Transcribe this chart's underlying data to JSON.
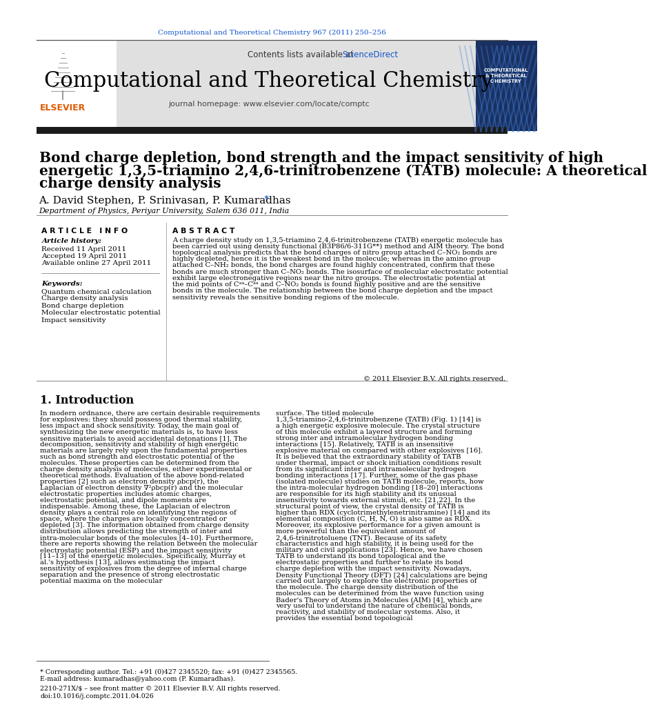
{
  "journal_ref": "Computational and Theoretical Chemistry 967 (2011) 250–256",
  "journal_name": "Computational and Theoretical Chemistry",
  "journal_homepage": "journal homepage: www.elsevier.com/locate/comptc",
  "contents_text": "Contents lists available at ",
  "sciencedirect": "ScienceDirect",
  "title_line1": "Bond charge depletion, bond strength and the impact sensitivity of high",
  "title_line2": "energetic 1,3,5-triamino 2,4,6-trinitrobenzene (TATB) molecule: A theoretical",
  "title_line3": "charge density analysis",
  "authors_main": "A. David Stephen, P. Srinivasan, P. Kumaradhas",
  "authors_star": " *",
  "affiliation": "Department of Physics, Periyar University, Salem 636 011, India",
  "article_info_header": "A R T I C L E   I N F O",
  "abstract_header": "A B S T R A C T",
  "article_history_label": "Article history:",
  "received": "Received 11 April 2011",
  "accepted": "Accepted 19 April 2011",
  "available": "Available online 27 April 2011",
  "keywords_label": "Keywords:",
  "keywords": [
    "Quantum chemical calculation",
    "Charge density analysis",
    "Bond charge depletion",
    "Molecular electrostatic potential",
    "Impact sensitivity"
  ],
  "abstract_text": "A charge density study on 1,3,5-triamino 2,4,6-trinitrobenzene (TATB) energetic molecule has been carried out using density functional (B3P86/6-311G**) method and AIM theory. The bond topological analysis predicts that the bond charges of nitro group attached C–NO₂ bonds are highly depleted, hence it is the weakest bond in the molecule; whereas in the amino group attached C–NH₂ bonds, the bond charges are found highly concentrated, confirm that these bonds are much stronger than C–NO₂ bonds. The isosurface of molecular electrostatic potential exhibit large electronegative regions near the nitro groups. The electrostatic potential at the mid points of Cᵃᵃ–Cᵃᵃ and C–NO₂ bonds is found highly positive and are the sensitive bonds in the molecule. The relationship between the bond charge depletion and the impact sensitivity reveals the sensitive bonding regions of the molecule.",
  "copyright": "© 2011 Elsevier B.V. All rights reserved.",
  "section1_title": "1. Introduction",
  "intro_left": "In modern ordnance, there are certain desirable requirements for explosives: they should possess good thermal stability, less impact and shock sensitivity. Today, the main goal of synthesizing the new energetic materials is, to have less sensitive materials to avoid accidental detonations [1]. The decomposition, sensitivity and stability of high energetic materials are largely rely upon the fundamental properties such as bond strength and electrostatic potential of the molecules. These properties can be determined from the charge density analysis of molecules, either experimental or theoretical methods. Evaluation of the above bond-related properties [2] such as electron density ρbcp(r), the Laplacian of electron density ∇²ρbcp(r) and the molecular electrostatic properties includes atomic charges, electrostatic potential, and dipole moments are indispensable. Among these, the Laplacian of electron density plays a central role on identifying the regions of space, where the charges are locally concentrated or depleted [3]. The information obtained from charge density distribution allows predicting the strength of inter and intra-molecular bonds of the molecules [4–10]. Furthermore, there are reports showing the relation between the molecular electrostatic potential (ESP) and the impact sensitivity [11–13] of the energetic molecules. Specifically, Murray et al.'s hypothesis [13], allows estimating the impact sensitivity of explosives from the degree of internal charge separation and the presence of strong electrostatic potential maxima on the molecular",
  "intro_right": "surface. The titled molecule 1,3,5-triamino-2,4,6-trinitrobenzene (TATB) (Fig. 1) [14] is a high energetic explosive molecule. The crystal structure of this molecule exhibit a layered structure and forming strong inter and intramolecular hydrogen bonding interactions [15]. Relatively, TATB is an insensitive explosive material on compared with other explosives [16]. It is believed that the extraordinary stability of TATB under thermal, impact or shock initiation conditions result from its significant inter and intramolecular hydrogen bonding interactions [17]. Further, some of the gas phase (isolated molecule) studies on TATB molecule, reports, how the intra-molecular hydrogen bonding [18–20] interactions are responsible for its high stability and its unusual insensitivity towards external stimuli, etc. [21,22]. In the structural point of view, the crystal density of TATB is higher than RDX (cyclotrimethylenetrinitramine) [14] and its elemental composition (C, H, N, O) is also same as RDX. Moreover, its explosive performance for a given amount is more powerful than the equivalent amount of 2,4,6-trinitrotoluene (TNT). Because of its safety characteristics and high stability, it is being used for the military and civil applications [23]. Hence, we have chosen TATB to understand its bond topological and the electrostatic properties and further to relate its bond charge depletion with the impact sensitivity. Nowadays, Density Functional Theory (DFT) [24] calculations are being carried out largely to explore the electronic properties of the molecule. The charge density distribution of the molecules can be determined from the wave function using Bader's Theory of Atoms in Molecules (AIM) [4], which are very useful to understand the nature of chemical bonds, reactivity, and stability of molecular systems. Also, it provides the essential bond topological",
  "footnote_star": "* Corresponding author. Tel.: +91 (0)427 2345520; fax: +91 (0)427 2345565.",
  "footnote_email": "E-mail address: kumaradhas@yahoo.com (P. Kumaradhas).",
  "issn_line": "2210-271X/$ – see front matter © 2011 Elsevier B.V. All rights reserved.",
  "doi_line": "doi:10.1016/j.comptc.2011.04.026",
  "bg_color": "#ffffff",
  "header_bg": "#e0e0e0",
  "black_bar_color": "#1a1a1a",
  "link_color": "#1155cc",
  "elsevier_orange": "#e05a00",
  "text_color": "#000000"
}
